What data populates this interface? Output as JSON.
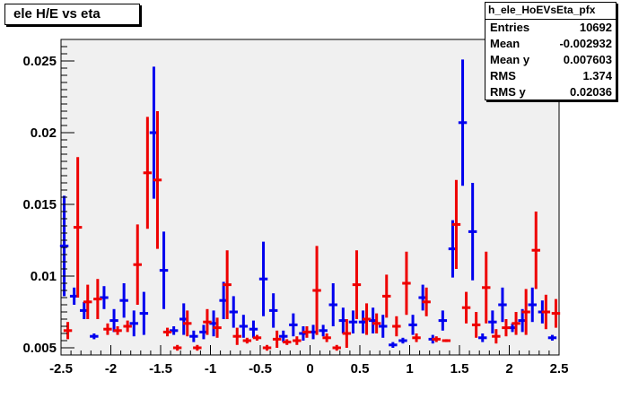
{
  "title": "ele H/E vs eta",
  "stats": {
    "name": "h_ele_HoEVsEta_pfx",
    "rows": [
      {
        "label": "Entries",
        "value": "10692"
      },
      {
        "label": "Mean",
        "value": "-0.002932"
      },
      {
        "label": "Mean y",
        "value": "0.007603"
      },
      {
        "label": "RMS",
        "value": "1.374"
      },
      {
        "label": "RMS y",
        "value": "0.02036"
      }
    ]
  },
  "colors": {
    "frame_bg": "#f0f0f0",
    "series_blue": "#0000ee",
    "series_red": "#ee0000"
  },
  "chart_data": {
    "type": "scatter",
    "title": "ele H/E vs eta",
    "xlim": [
      -2.5,
      2.5
    ],
    "ylim": [
      0.0045,
      0.0265
    ],
    "xticks": [
      "-2.5",
      "-2",
      "-1.5",
      "-1",
      "-0.5",
      "0",
      "0.5",
      "1",
      "1.5",
      "2",
      "2.5"
    ],
    "yticks": [
      "0.005",
      "0.01",
      "0.015",
      "0.02",
      "0.025"
    ],
    "grid": false,
    "series": [
      {
        "color": "blue",
        "x": [
          -2.45,
          -2.35,
          -2.25,
          -2.15,
          -2.05,
          -1.95,
          -1.85,
          -1.75,
          -1.65,
          -1.55,
          -1.45,
          -1.35,
          -1.25,
          -1.15,
          -1.05,
          -0.95,
          -0.85,
          -0.75,
          -0.65,
          -0.55,
          -0.45,
          -0.35,
          -0.25,
          -0.15,
          -0.05,
          0.05,
          0.15,
          0.25,
          0.35,
          0.45,
          0.55,
          0.65,
          0.75,
          0.85,
          0.95,
          1.05,
          1.15,
          1.25,
          1.35,
          1.45,
          1.55,
          1.65,
          1.75,
          1.85,
          1.95,
          2.05,
          2.15,
          2.25,
          2.35,
          2.45
        ],
        "y": [
          0.0121,
          0.0086,
          0.0076,
          0.0058,
          0.0085,
          0.0069,
          0.0083,
          0.0067,
          0.0074,
          0.02,
          0.0104,
          0.0062,
          0.007,
          0.0058,
          0.0061,
          0.0067,
          0.0083,
          0.0075,
          0.0065,
          0.0063,
          0.0098,
          0.0076,
          0.0058,
          0.0066,
          0.006,
          0.0061,
          0.0062,
          0.008,
          0.0069,
          0.0068,
          0.0068,
          0.0069,
          0.0065,
          0.0052,
          0.0055,
          0.0066,
          0.0085,
          0.0056,
          0.0069,
          0.0119,
          0.0207,
          0.0131,
          0.0057,
          0.0068,
          0.008,
          0.0064,
          0.0069,
          0.008,
          0.0075,
          0.0057
        ],
        "err": [
          0.0035,
          0.0006,
          0.0006,
          0.0002,
          0.0008,
          0.0008,
          0.0012,
          0.0009,
          0.0015,
          0.0046,
          0.0027,
          0.0003,
          0.0011,
          0.0004,
          0.0005,
          0.0009,
          0.0013,
          0.0011,
          0.0008,
          0.0006,
          0.0026,
          0.0012,
          0.0004,
          0.0008,
          0.0005,
          0.0005,
          0.0004,
          0.0015,
          0.0009,
          0.0008,
          0.0008,
          0.0009,
          0.0008,
          0.0002,
          0.0002,
          0.0007,
          0.0009,
          0.0003,
          0.0007,
          0.002,
          0.0044,
          0.0034,
          0.0003,
          0.0008,
          0.0012,
          0.0003,
          0.0008,
          0.0012,
          0.0008,
          0.0002
        ]
      },
      {
        "color": "red",
        "x": [
          -2.45,
          -2.35,
          -2.25,
          -2.15,
          -2.05,
          -1.95,
          -1.85,
          -1.75,
          -1.65,
          -1.55,
          -1.45,
          -1.35,
          -1.25,
          -1.15,
          -1.05,
          -0.95,
          -0.85,
          -0.75,
          -0.65,
          -0.55,
          -0.45,
          -0.35,
          -0.25,
          -0.15,
          -0.05,
          0.05,
          0.15,
          0.25,
          0.35,
          0.45,
          0.55,
          0.65,
          0.75,
          0.85,
          0.95,
          1.05,
          1.15,
          1.25,
          1.35,
          1.45,
          1.55,
          1.65,
          1.75,
          1.85,
          1.95,
          2.05,
          2.15,
          2.25,
          2.35,
          2.45
        ],
        "y": [
          0.0062,
          0.0134,
          0.0082,
          0.0084,
          0.0063,
          0.0062,
          0.0065,
          0.0108,
          0.0172,
          0.0167,
          0.0061,
          0.005,
          0.0067,
          0.005,
          0.0068,
          0.0064,
          0.0094,
          0.0058,
          0.0055,
          0.0057,
          0.005,
          0.0056,
          0.0054,
          0.0055,
          0.0061,
          0.009,
          0.0057,
          0.005,
          0.006,
          0.0094,
          0.007,
          0.0067,
          0.0086,
          0.0065,
          0.0095,
          0.0057,
          0.0082,
          0.0056,
          0.0055,
          0.0136,
          0.0078,
          0.0066,
          0.0092,
          0.0058,
          0.0064,
          0.0067,
          0.0075,
          0.0118,
          0.0075,
          0.0074
        ],
        "err": [
          0.0006,
          0.0049,
          0.0012,
          0.0014,
          0.0004,
          0.0003,
          0.0004,
          0.0028,
          0.0039,
          0.0048,
          0.0003,
          0.0002,
          0.0009,
          0.0002,
          0.0009,
          0.0007,
          0.0024,
          0.0006,
          0.0002,
          0.0002,
          0.0002,
          0.0006,
          0.0002,
          0.0003,
          0.0004,
          0.0031,
          0.0003,
          0.0002,
          0.001,
          0.0024,
          0.0011,
          0.0007,
          0.0015,
          0.0007,
          0.0022,
          0.0003,
          0.001,
          0.0002,
          0.0001,
          0.0031,
          0.0011,
          0.0009,
          0.0025,
          0.0005,
          0.0006,
          0.0008,
          0.0016,
          0.0027,
          0.0012,
          0.001
        ]
      }
    ]
  }
}
